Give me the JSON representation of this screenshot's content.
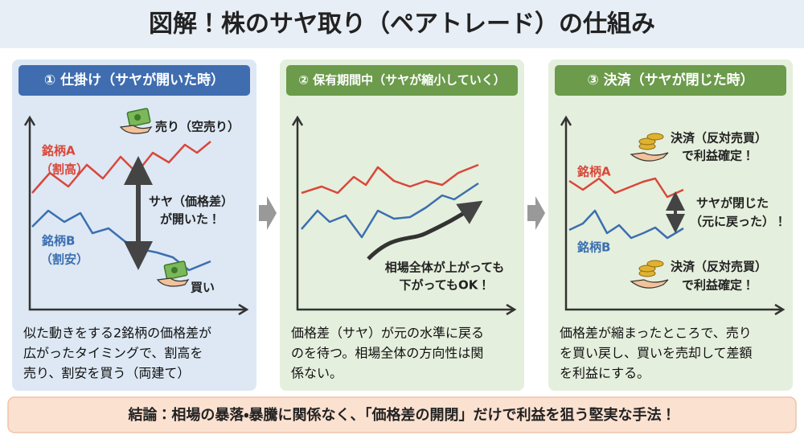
{
  "title": "図解！株のサヤ取り（ペアトレード）の仕組み",
  "panels": [
    {
      "header": "① 仕掛け（サヤが開いた時）",
      "labels": [
        "売り（空売り）",
        "銘柄A",
        "（割高）",
        "サヤ（価格差）",
        "が開いた！",
        "銘柄B",
        "（割安）",
        "買い"
      ],
      "description": [
        "似た動きをする2銘柄の価格差が",
        "広がったタイミングで、割高を",
        "売り、割安を買う（両建て）"
      ]
    },
    {
      "header": "② 保有期間中（サヤが縮小していく）",
      "labels": [
        "相場全体が上がっても",
        "下がってもOK！"
      ],
      "description": [
        "価格差（サヤ）が元の水準に戻る",
        "のを待つ。相場全体の方向性は関",
        "係ない。"
      ]
    },
    {
      "header": "③ 決済（サヤが閉じた時）",
      "labels": [
        "決済（反対売買）",
        "で利益確定！",
        "銘柄A",
        "サヤが閉じた",
        "（元に戻った）！",
        "銘柄B",
        "決済（反対売買）",
        "で利益確定！"
      ],
      "description": [
        "価格差が縮まったところで、売り",
        "を買い戻し、買いを売却して差額",
        "を利益にする。"
      ]
    }
  ],
  "conclusion": "結論：相場の暴落・暴騰に関係なく、「価格差の開閉」だけで利益を狙う堅実な手法！"
}
